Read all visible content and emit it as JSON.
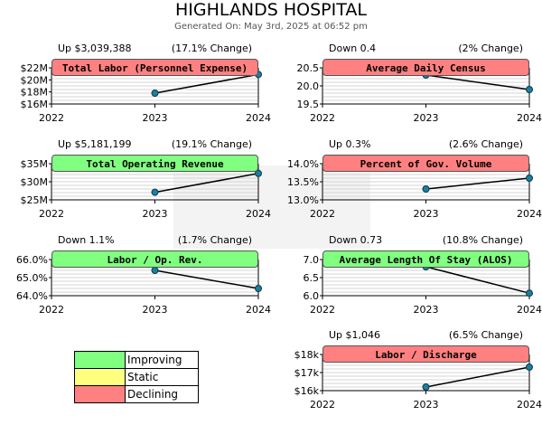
{
  "page": {
    "title": "HIGHLANDS HOSPITAL",
    "subtitle": "Generated On: May 3rd, 2025 at 06:52 pm"
  },
  "colors": {
    "improving": "#80ff80",
    "static": "#ffff80",
    "declining": "#ff8080",
    "line": "#000000",
    "marker": "#1a7fa0",
    "grid": "#c8c8c8"
  },
  "legend": {
    "items": [
      {
        "label": "Improving",
        "status": "improving"
      },
      {
        "label": "Static",
        "status": "static"
      },
      {
        "label": "Declining",
        "status": "declining"
      }
    ]
  },
  "chart_data": [
    {
      "type": "line",
      "title": "Total Labor (Personnel Expense)",
      "status": "declining",
      "change_text": "Up $3,039,388",
      "pct_change": "(17.1% Change)",
      "categories": [
        "2022",
        "2023",
        "2024"
      ],
      "values": [
        null,
        17.8,
        20.9
      ],
      "yticks": [
        "$22M",
        "$20M",
        "$18M",
        "$16M"
      ],
      "ylim": [
        16,
        22
      ],
      "grid": true
    },
    {
      "type": "line",
      "title": "Average Daily Census",
      "status": "declining",
      "change_text": "Down 0.4",
      "pct_change": "(2% Change)",
      "categories": [
        "2022",
        "2023",
        "2024"
      ],
      "values": [
        null,
        20.3,
        19.9
      ],
      "yticks": [
        "20.5",
        "20.0",
        "19.5"
      ],
      "ylim": [
        19.5,
        20.5
      ],
      "grid": true
    },
    {
      "type": "line",
      "title": "Total Operating Revenue",
      "status": "improving",
      "change_text": "Up $5,181,199",
      "pct_change": "(19.1% Change)",
      "categories": [
        "2022",
        "2023",
        "2024"
      ],
      "values": [
        null,
        27.1,
        32.3
      ],
      "yticks": [
        "$35M",
        "$30M",
        "$25M"
      ],
      "ylim": [
        25,
        35
      ],
      "grid": true
    },
    {
      "type": "line",
      "title": "Percent of Gov. Volume",
      "status": "declining",
      "change_text": "Up 0.3%",
      "pct_change": "(2.6% Change)",
      "categories": [
        "2022",
        "2023",
        "2024"
      ],
      "values": [
        null,
        13.3,
        13.6
      ],
      "yticks": [
        "14.0%",
        "13.5%",
        "13.0%"
      ],
      "ylim": [
        13.0,
        14.0
      ],
      "grid": true
    },
    {
      "type": "line",
      "title": "Labor / Op. Rev.",
      "status": "improving",
      "change_text": "Down 1.1%",
      "pct_change": "(1.7% Change)",
      "categories": [
        "2022",
        "2023",
        "2024"
      ],
      "values": [
        null,
        65.4,
        64.4
      ],
      "yticks": [
        "66.0%",
        "65.0%",
        "64.0%"
      ],
      "ylim": [
        64.0,
        66.0
      ],
      "grid": true
    },
    {
      "type": "line",
      "title": "Average Length Of Stay (ALOS)",
      "status": "improving",
      "change_text": "Down 0.73",
      "pct_change": "(10.8% Change)",
      "categories": [
        "2022",
        "2023",
        "2024"
      ],
      "values": [
        null,
        6.8,
        6.07
      ],
      "yticks": [
        "7.0",
        "6.5",
        "6.0"
      ],
      "ylim": [
        6.0,
        7.0
      ],
      "grid": true
    },
    {
      "type": "line",
      "title": "Labor / Discharge",
      "status": "declining",
      "change_text": "Up $1,046",
      "pct_change": "(6.5% Change)",
      "categories": [
        "2022",
        "2023",
        "2024"
      ],
      "values": [
        null,
        16.2,
        17.3
      ],
      "yticks": [
        "$18k",
        "$17k",
        "$16k"
      ],
      "ylim": [
        16,
        18
      ],
      "grid": true
    }
  ]
}
